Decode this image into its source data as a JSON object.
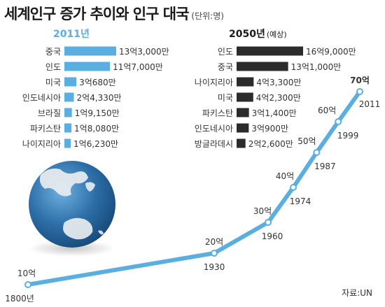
{
  "title": "세계인구 증가 추이와 인구 대국",
  "title_unit": "(단위:명)",
  "source": "자료:UN",
  "colors": {
    "blue": "#5aaee0",
    "dark": "#2b2b2b",
    "globe": "#2d6fa8"
  },
  "chart_data": [
    {
      "type": "bar",
      "title": "2011년",
      "categories": [
        "중국",
        "인도",
        "미국",
        "인도네시아",
        "브라질",
        "파키스탄",
        "나이지리아"
      ],
      "values": [
        1330000000,
        1170000000,
        306800000,
        243300000,
        191500000,
        180800000,
        162300000
      ],
      "value_labels": [
        "13억3,000만",
        "11억7,000만",
        "3억680만",
        "2억4,330만",
        "1억9,150만",
        "1억8,080만",
        "1억6,230만"
      ]
    },
    {
      "type": "bar",
      "title": "2050년",
      "title_note": "(예상)",
      "categories": [
        "인도",
        "중국",
        "나이지리아",
        "미국",
        "파키스탄",
        "인도네시아",
        "방글라데시"
      ],
      "values": [
        1690000000,
        1310000000,
        433000000,
        423000000,
        314000000,
        309000000,
        226000000
      ],
      "value_labels": [
        "16억9,000만",
        "13억1,000만",
        "4억3,300만",
        "4억2,300만",
        "3억1,400만",
        "3억900만",
        "2억2,600만"
      ]
    },
    {
      "type": "line",
      "x": [
        1800,
        1930,
        1960,
        1974,
        1987,
        1999,
        2011
      ],
      "y": [
        1,
        2,
        3,
        4,
        5,
        6,
        7
      ],
      "x_labels": [
        "1800년",
        "1930",
        "1960",
        "1974",
        "1987",
        "1999",
        "2011"
      ],
      "y_labels": [
        "10억",
        "20억",
        "30억",
        "40억",
        "50억",
        "60억",
        "70억"
      ]
    }
  ]
}
